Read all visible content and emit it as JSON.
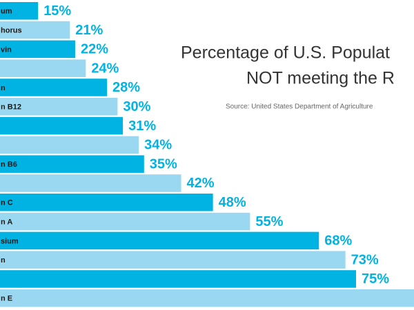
{
  "chart_data": {
    "type": "hbar",
    "title_lines": [
      "Percentage of U.S. Populat",
      "NOT meeting the R"
    ],
    "source": "Source: United States Department of Agriculture",
    "categories": [
      "um",
      "horus",
      "vin",
      null,
      "n",
      "n B12",
      null,
      null,
      "n B6",
      null,
      "n C",
      "n A",
      "sium",
      "n",
      null,
      "n E"
    ],
    "values": [
      15,
      21,
      22,
      24,
      28,
      30,
      31,
      34,
      35,
      42,
      48,
      55,
      68,
      73,
      75,
      86
    ],
    "value_labels": [
      "15%",
      "21%",
      "22%",
      "24%",
      "28%",
      "30%",
      "31%",
      "34%",
      "35%",
      "42%",
      "48%",
      "55%",
      "68%",
      "73%",
      "75%",
      null
    ],
    "colors": [
      "#00b3e3",
      "#99d8f0"
    ]
  }
}
